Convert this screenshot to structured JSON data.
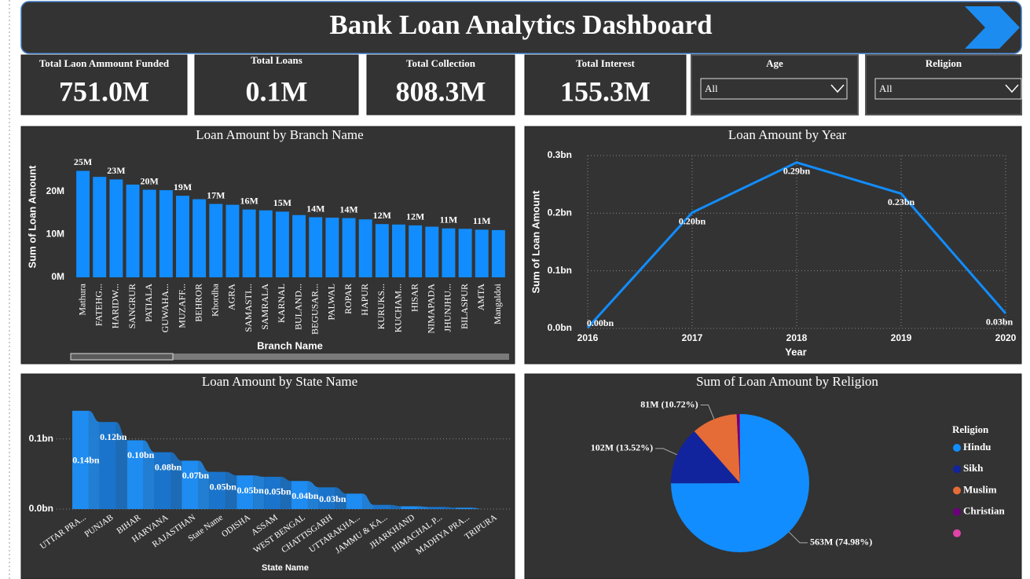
{
  "header": {
    "title": "Bank Loan Analytics Dashboard"
  },
  "kpis": [
    {
      "label": "Total Laon Ammount Funded",
      "value": "751.0M"
    },
    {
      "label": "Total Loans",
      "value": "0.1M"
    },
    {
      "label": "Total Collection",
      "value": "808.3M"
    },
    {
      "label": "Total Interest",
      "value": "155.3M"
    }
  ],
  "filters": [
    {
      "label": "Age",
      "selected": "All"
    },
    {
      "label": "Religion",
      "selected": "All"
    }
  ],
  "chart_data": [
    {
      "type": "bar",
      "title": "Loan Amount by Branch Name",
      "x_label": "Branch Name",
      "y_label": "Sum of Loan Amount",
      "categories": [
        "Mathura",
        "FATEHG...",
        "HARIDW...",
        "SANGRUR",
        "PATIALA",
        "GUWAHA...",
        "MUZAFF...",
        "BEHROR",
        "Khordha",
        "AGRA",
        "SAMASTI...",
        "SAMRALA",
        "KARNAL",
        "BULAND...",
        "BEGUSAR...",
        "PALWAL",
        "ROPAR",
        "HAPUR",
        "KURUKS...",
        "KUCHAM...",
        "HISAR",
        "NIMAPADA",
        "JHUNJHU...",
        "BILASPUR",
        "AMTA",
        "Mangaldoi"
      ],
      "values": [
        24.8,
        23.4,
        22.8,
        21.6,
        20.4,
        20.3,
        19.0,
        18.2,
        17.1,
        16.9,
        15.8,
        15.6,
        15.3,
        14.5,
        14.0,
        13.9,
        13.8,
        13.5,
        12.4,
        12.3,
        12.1,
        11.8,
        11.4,
        11.3,
        11.1,
        11.0
      ],
      "value_labels": [
        "25M",
        null,
        "23M",
        null,
        "20M",
        null,
        "19M",
        null,
        "17M",
        null,
        "16M",
        null,
        "15M",
        null,
        "14M",
        null,
        "14M",
        null,
        "12M",
        null,
        "12M",
        null,
        "11M",
        null,
        "11M",
        null
      ],
      "color": "#118dff",
      "ylim": [
        0,
        28
      ],
      "yticks": [
        {
          "value": 0,
          "label": "0M"
        },
        {
          "value": 10,
          "label": "10M"
        },
        {
          "value": 20,
          "label": "20M"
        }
      ]
    },
    {
      "type": "line",
      "title": "Loan Amount by Year",
      "x_label": "Year",
      "y_label": "Sum of Loan Amount",
      "x": [
        2016,
        2017,
        2018,
        2019,
        2020
      ],
      "values": [
        0.001,
        0.201,
        0.288,
        0.234,
        0.026
      ],
      "value_labels": [
        "0.00bn",
        "0.20bn",
        "0.29bn",
        "0.23bn",
        "0.03bn"
      ],
      "color": "#118dff",
      "grid": true,
      "xlim": [
        2016,
        2020
      ],
      "xticks": [
        2016,
        2017,
        2018,
        2019,
        2020
      ],
      "ylim": [
        0,
        0.3
      ],
      "yticks": [
        {
          "value": 0,
          "label": "0.0bn"
        },
        {
          "value": 0.1,
          "label": "0.1bn"
        },
        {
          "value": 0.2,
          "label": "0.2bn"
        },
        {
          "value": 0.3,
          "label": "0.3bn"
        }
      ]
    },
    {
      "type": "ribbon",
      "title": "Loan Amount by State Name",
      "x_label": "State Name",
      "categories": [
        "UTTAR PRA...",
        "PUNJAB",
        "BIHAR",
        "HARYANA",
        "RAJASTHAN",
        "State Name",
        "ODISHA",
        "ASSAM",
        "WEST BENGAL",
        "CHATTISGARH",
        "UTTARAKHA...",
        "JAMMU & KA...",
        "JHARKHAND",
        "HIMACHAL P...",
        "MADHYA PRA...",
        "TRIPURA"
      ],
      "values": [
        0.14,
        0.124,
        0.098,
        0.081,
        0.069,
        0.053,
        0.048,
        0.046,
        0.04,
        0.031,
        0.022,
        0.006,
        0.004,
        0.003,
        0.002,
        0.0
      ],
      "value_labels": [
        "0.14bn",
        "0.12bn",
        "0.10bn",
        "0.08bn",
        "0.07bn",
        "0.05bn",
        "0.05bn",
        "0.05bn",
        "0.04bn",
        "0.03bn",
        null,
        null,
        null,
        null,
        null,
        null
      ],
      "colors": [
        "#1e8cf0",
        "#1a74cc"
      ],
      "grid": true,
      "ylim": [
        0,
        0.16
      ],
      "yticks": [
        {
          "value": 0,
          "label": "0.0bn"
        },
        {
          "value": 0.1,
          "label": "0.1bn"
        }
      ]
    },
    {
      "type": "pie",
      "title": "Sum of Loan Amount by Religion",
      "legend_title": "Religion",
      "categories": [
        "Hindu",
        "Sikh",
        "Muslim",
        "Christian",
        null
      ],
      "values": [
        563.1,
        101.54,
        80.51,
        5.26,
        0.6
      ],
      "value_labels": [
        "563M (74.98%)",
        "102M (13.52%)",
        "81M (10.72%)",
        null,
        null
      ],
      "colors": [
        "#118dff",
        "#12239e",
        "#e66c37",
        "#6b007b",
        "#e044a7"
      ]
    }
  ]
}
